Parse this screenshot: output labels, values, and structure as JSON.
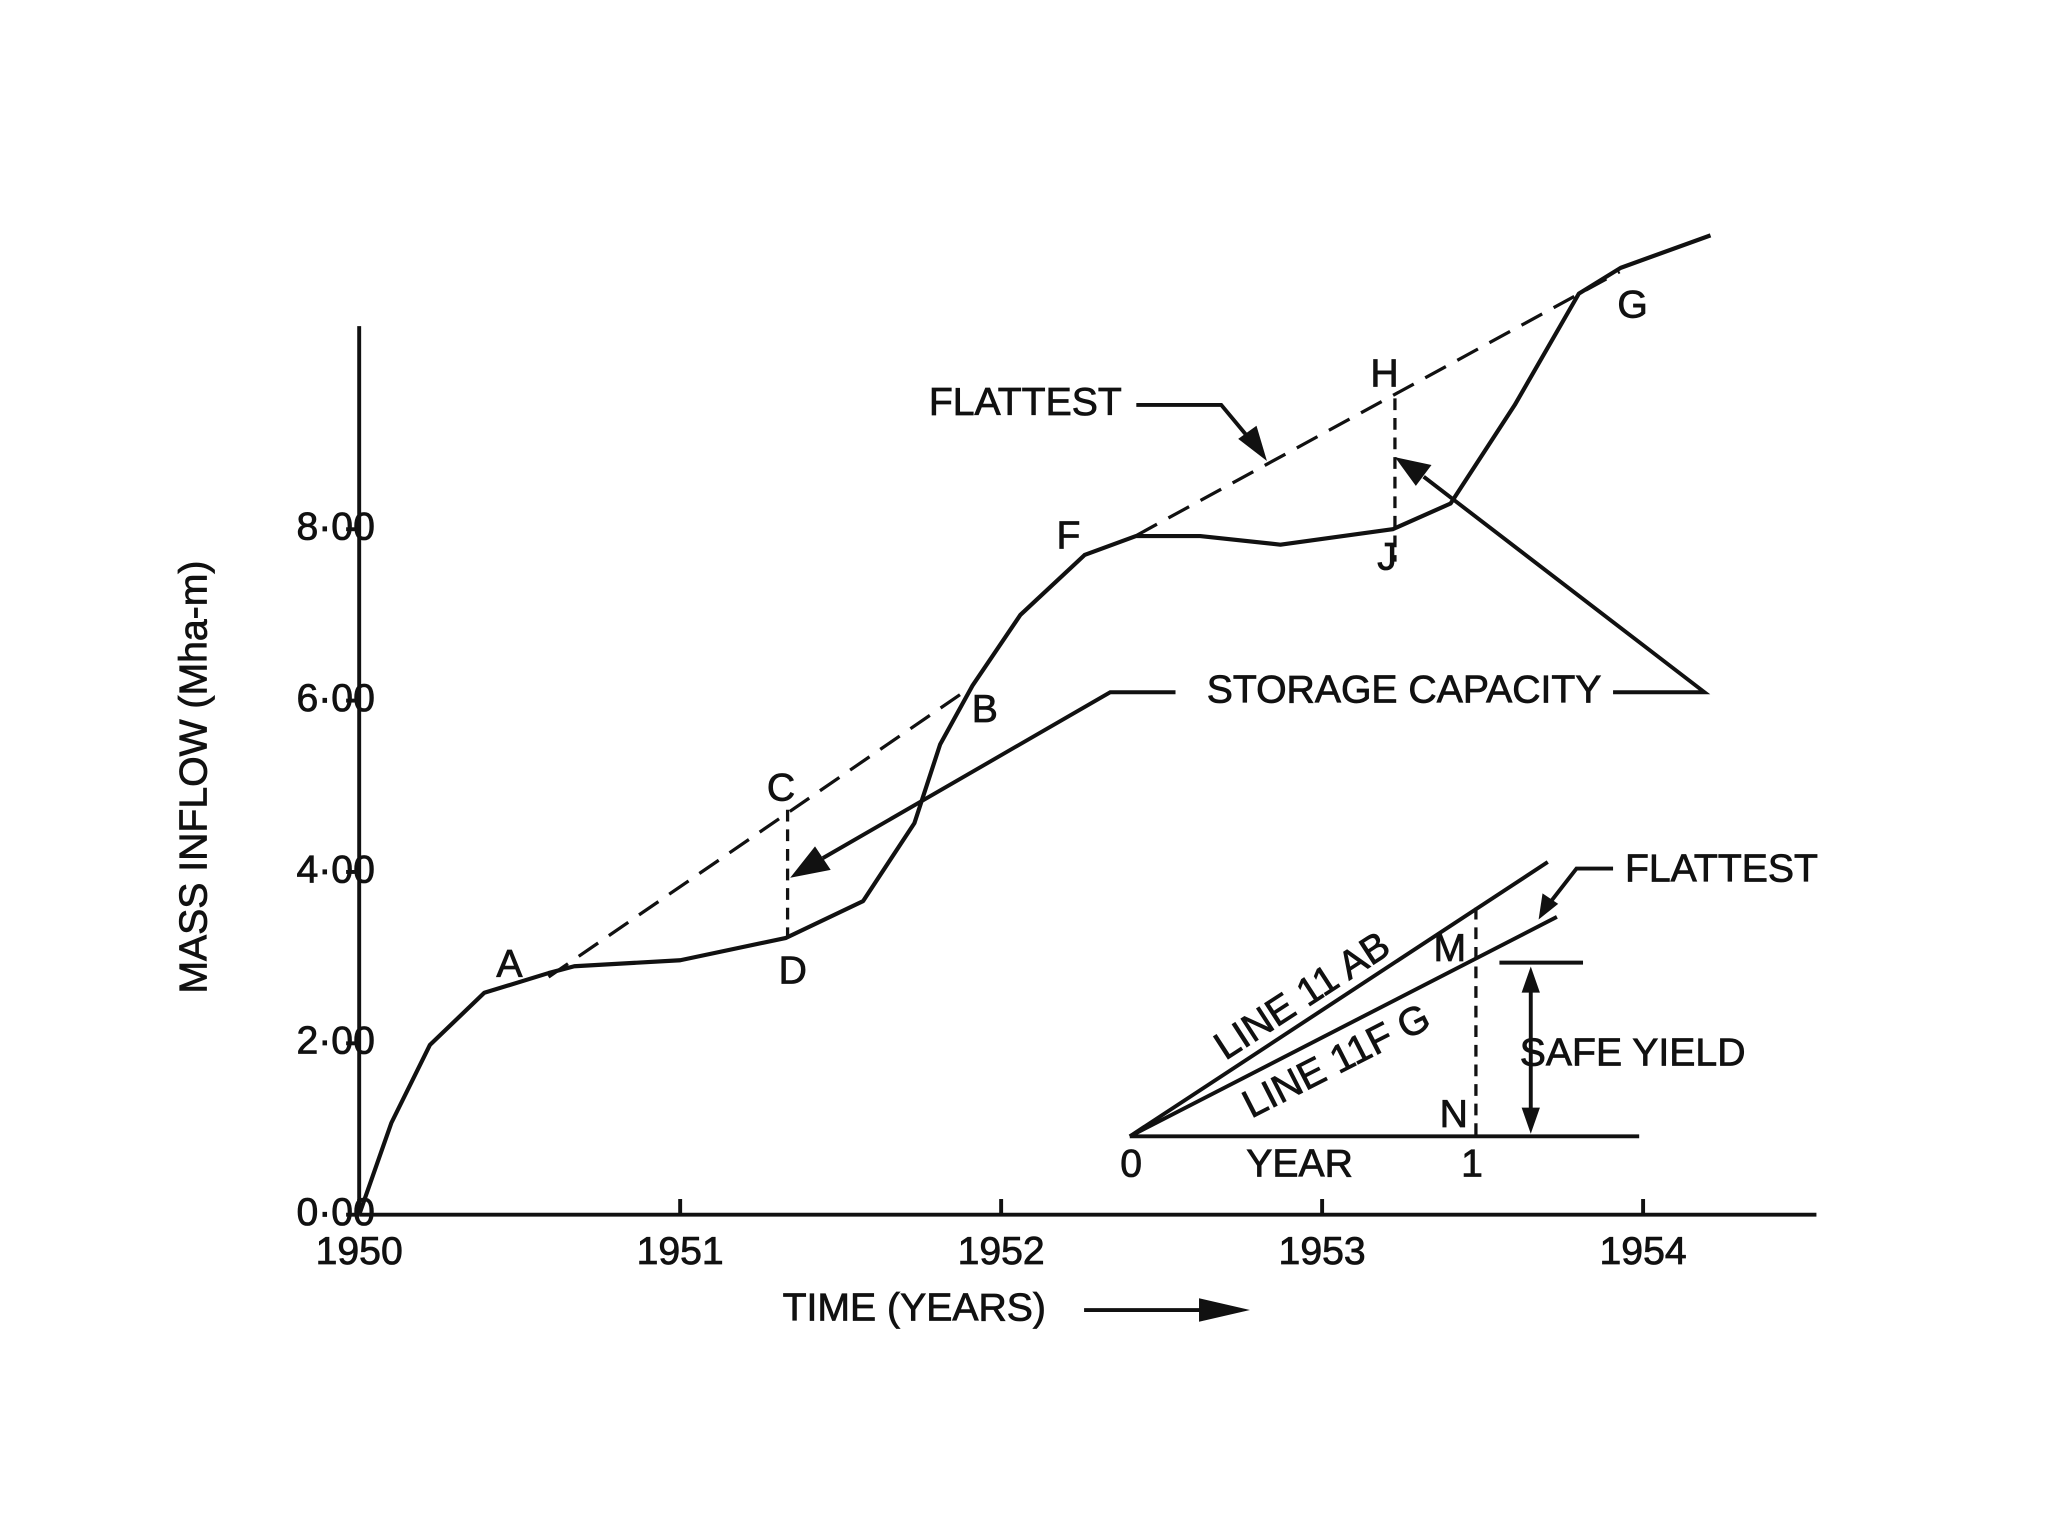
{
  "chart_data": {
    "type": "line",
    "x_label": "TIME (YEARS)",
    "y_label": "MASS  INFLOW (Mha-m)",
    "x": [
      1950.0,
      1950.1,
      1950.22,
      1950.39,
      1950.59,
      1950.67,
      1951.0,
      1951.33,
      1951.57,
      1951.73,
      1951.81,
      1951.91,
      1952.06,
      1952.26,
      1952.42,
      1952.62,
      1952.87,
      1953.22,
      1953.4,
      1953.6,
      1953.8,
      1953.93,
      1954.21
    ],
    "values": [
      0.0,
      1.07,
      1.98,
      2.59,
      2.82,
      2.9,
      2.97,
      3.23,
      3.66,
      4.57,
      5.49,
      6.17,
      7.0,
      7.7,
      7.92,
      7.92,
      7.82,
      8.0,
      8.3,
      9.45,
      10.75,
      11.05,
      11.43
    ],
    "color": "#111111",
    "xlim": [
      1950,
      1954.54
    ],
    "ylim": [
      0,
      10.37
    ],
    "xticks": [
      1950,
      1951,
      1952,
      1953,
      1954
    ],
    "yticks": [
      {
        "value": 0,
        "label": "0·00"
      },
      {
        "value": 2,
        "label": "2·00"
      },
      {
        "value": 4,
        "label": "4·00"
      },
      {
        "value": 6,
        "label": "6·00"
      },
      {
        "value": 8,
        "label": "8·00"
      }
    ],
    "annotations": [
      "A",
      "B",
      "C",
      "D",
      "F",
      "G",
      "H",
      "J",
      "FLATTEST",
      "STORAGE   CAPACITY",
      "LINE 11 AB",
      "LINE 11F G",
      "M",
      "N",
      "0",
      "1",
      "YEAR",
      "SAFE  YIELD",
      "FLATTEST"
    ]
  }
}
